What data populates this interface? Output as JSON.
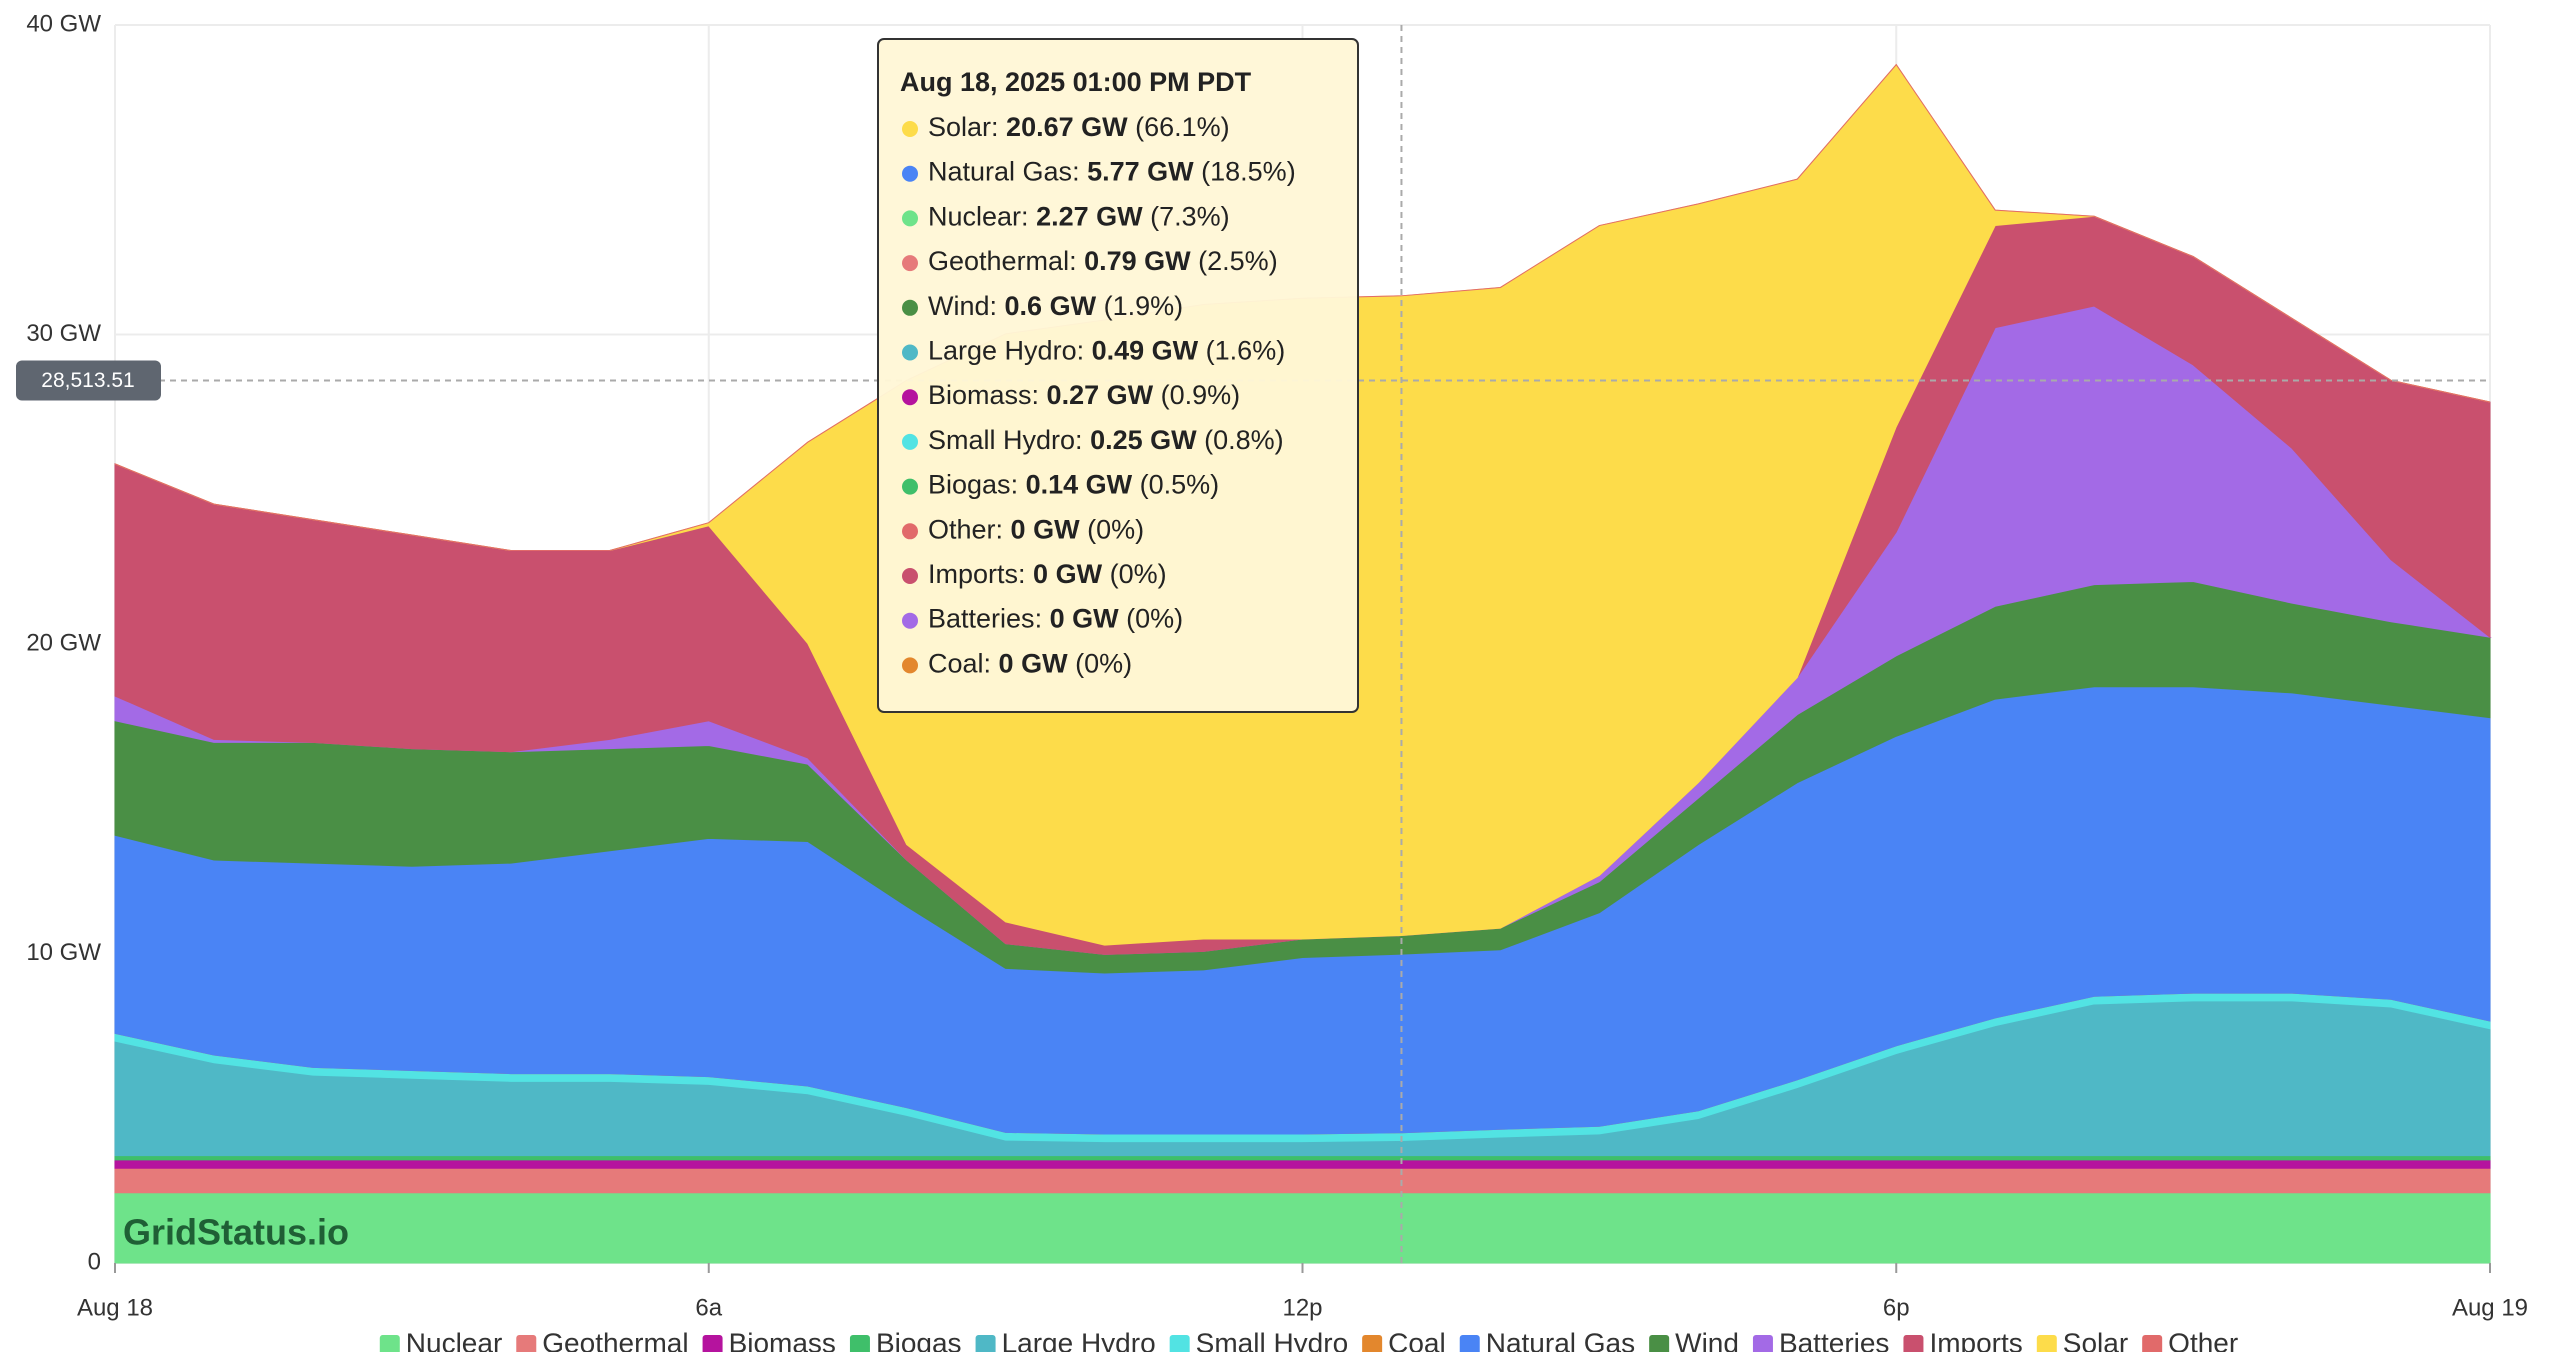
{
  "chart_data": {
    "type": "stacked_area",
    "x": [
      0,
      1,
      2,
      3,
      4,
      5,
      6,
      7,
      8,
      9,
      10,
      11,
      12,
      13,
      14,
      15,
      16,
      17,
      18,
      19,
      20,
      21,
      22,
      23,
      24
    ],
    "xlim": [
      0,
      24
    ],
    "xticks": [
      {
        "value": 0,
        "label": "Aug 18"
      },
      {
        "value": 6,
        "label": "6a"
      },
      {
        "value": 12,
        "label": "12p"
      },
      {
        "value": 18,
        "label": "6p"
      },
      {
        "value": 24,
        "label": "Aug 19"
      }
    ],
    "ylim": [
      0,
      40
    ],
    "yticks": [
      0,
      {
        "value": 10,
        "label": "10 GW"
      },
      {
        "value": 20,
        "label": "20 GW"
      },
      {
        "value": 30,
        "label": "30 GW"
      },
      {
        "value": 40,
        "label": "40 GW"
      }
    ],
    "grid": true,
    "legend": "bottom",
    "watermark": "GridStatus.io",
    "series": [
      {
        "name": "Nuclear",
        "color": "#6ee38a",
        "values": [
          2.27,
          2.27,
          2.27,
          2.27,
          2.27,
          2.27,
          2.27,
          2.27,
          2.27,
          2.27,
          2.27,
          2.27,
          2.27,
          2.27,
          2.27,
          2.27,
          2.27,
          2.27,
          2.27,
          2.27,
          2.27,
          2.27,
          2.27,
          2.27,
          2.27
        ]
      },
      {
        "name": "Geothermal",
        "color": "#e67a7a",
        "values": [
          0.79,
          0.79,
          0.79,
          0.79,
          0.79,
          0.79,
          0.79,
          0.79,
          0.79,
          0.79,
          0.79,
          0.79,
          0.79,
          0.79,
          0.79,
          0.79,
          0.79,
          0.79,
          0.79,
          0.79,
          0.79,
          0.79,
          0.79,
          0.79,
          0.79
        ]
      },
      {
        "name": "Biomass",
        "color": "#b5139e",
        "values": [
          0.27,
          0.27,
          0.27,
          0.27,
          0.27,
          0.27,
          0.27,
          0.27,
          0.27,
          0.27,
          0.27,
          0.27,
          0.27,
          0.27,
          0.27,
          0.27,
          0.27,
          0.27,
          0.27,
          0.27,
          0.27,
          0.27,
          0.27,
          0.27,
          0.27
        ]
      },
      {
        "name": "Biogas",
        "color": "#3fbf6a",
        "values": [
          0.14,
          0.14,
          0.14,
          0.14,
          0.14,
          0.14,
          0.14,
          0.14,
          0.14,
          0.14,
          0.14,
          0.14,
          0.14,
          0.14,
          0.14,
          0.14,
          0.14,
          0.14,
          0.14,
          0.14,
          0.14,
          0.14,
          0.14,
          0.14,
          0.14
        ]
      },
      {
        "name": "Large Hydro",
        "color": "#4fb8c6",
        "values": [
          3.7,
          3.0,
          2.6,
          2.5,
          2.4,
          2.4,
          2.3,
          2.0,
          1.3,
          0.5,
          0.45,
          0.45,
          0.45,
          0.49,
          0.6,
          0.7,
          1.2,
          2.2,
          3.3,
          4.2,
          4.9,
          5.0,
          5.0,
          4.8,
          4.1
        ]
      },
      {
        "name": "Small Hydro",
        "color": "#52e3e3",
        "values": [
          0.25,
          0.25,
          0.25,
          0.25,
          0.25,
          0.25,
          0.25,
          0.25,
          0.25,
          0.25,
          0.25,
          0.25,
          0.25,
          0.25,
          0.25,
          0.25,
          0.25,
          0.25,
          0.25,
          0.25,
          0.25,
          0.25,
          0.25,
          0.25,
          0.25
        ]
      },
      {
        "name": "Coal",
        "color": "#e3872d",
        "values": [
          0,
          0,
          0,
          0,
          0,
          0,
          0,
          0,
          0,
          0,
          0,
          0,
          0,
          0,
          0,
          0,
          0,
          0,
          0,
          0,
          0,
          0,
          0,
          0,
          0
        ]
      },
      {
        "name": "Natural Gas",
        "color": "#4a84f5",
        "values": [
          6.4,
          6.3,
          6.6,
          6.6,
          6.8,
          7.2,
          7.7,
          7.9,
          6.5,
          5.3,
          5.2,
          5.3,
          5.7,
          5.77,
          5.8,
          6.9,
          8.6,
          9.6,
          10.0,
          10.3,
          10.0,
          9.9,
          9.7,
          9.5,
          9.8
        ]
      },
      {
        "name": "Wind",
        "color": "#4a8f45",
        "values": [
          3.7,
          3.8,
          3.9,
          3.8,
          3.6,
          3.3,
          3.0,
          2.5,
          1.5,
          0.8,
          0.6,
          0.6,
          0.6,
          0.6,
          0.7,
          1.0,
          1.5,
          2.2,
          2.6,
          3.0,
          3.3,
          3.4,
          2.9,
          2.7,
          2.6
        ]
      },
      {
        "name": "Batteries",
        "color": "#a36ae6",
        "values": [
          0.8,
          0.1,
          0,
          0,
          0,
          0.3,
          0.8,
          0.2,
          0,
          0,
          0,
          0,
          0,
          0,
          0,
          0.2,
          0.5,
          1.2,
          4,
          9,
          9,
          7,
          5,
          2,
          0
        ]
      },
      {
        "name": "Imports",
        "color": "#c9506e",
        "values": [
          7.5,
          7.6,
          7.2,
          6.9,
          6.5,
          6.1,
          6.3,
          3.7,
          0.5,
          0.7,
          0.3,
          0.4,
          0,
          0,
          0,
          0,
          0,
          0,
          3.4,
          3.3,
          2.9,
          3.5,
          4.2,
          5.8,
          7.6
        ]
      },
      {
        "name": "Solar",
        "color": "#fddc4a",
        "values": [
          0,
          0,
          0,
          0,
          0,
          0,
          0.1,
          6.5,
          15,
          19,
          20.2,
          20.5,
          20.7,
          20.67,
          20.7,
          21,
          18.7,
          16.1,
          11.7,
          0.5,
          0,
          0,
          0,
          0,
          0
        ]
      },
      {
        "name": "Other",
        "color": "#e16a6a",
        "values": [
          0,
          0,
          0,
          0,
          0,
          0,
          0,
          0,
          0,
          0,
          0,
          0,
          0,
          0,
          0,
          0,
          0,
          0,
          0,
          0,
          0,
          0,
          0,
          0,
          0
        ]
      }
    ],
    "crosshair": {
      "x": 13,
      "y": 28.51351,
      "label": "28,513.51"
    },
    "tooltip": {
      "title": "Aug 18, 2025 01:00 PM PDT",
      "items": [
        {
          "name": "Solar",
          "value": "20.67 GW",
          "share": "(66.1%)"
        },
        {
          "name": "Natural Gas",
          "value": "5.77 GW",
          "share": "(18.5%)"
        },
        {
          "name": "Nuclear",
          "value": "2.27 GW",
          "share": "(7.3%)"
        },
        {
          "name": "Geothermal",
          "value": "0.79 GW",
          "share": "(2.5%)"
        },
        {
          "name": "Wind",
          "value": "0.6 GW",
          "share": "(1.9%)"
        },
        {
          "name": "Large Hydro",
          "value": "0.49 GW",
          "share": "(1.6%)"
        },
        {
          "name": "Biomass",
          "value": "0.27 GW",
          "share": "(0.9%)"
        },
        {
          "name": "Small Hydro",
          "value": "0.25 GW",
          "share": "(0.8%)"
        },
        {
          "name": "Biogas",
          "value": "0.14 GW",
          "share": "(0.5%)"
        },
        {
          "name": "Other",
          "value": "0 GW",
          "share": "(0%)"
        },
        {
          "name": "Imports",
          "value": "0 GW",
          "share": "(0%)"
        },
        {
          "name": "Batteries",
          "value": "0 GW",
          "share": "(0%)"
        },
        {
          "name": "Coal",
          "value": "0 GW",
          "share": "(0%)"
        }
      ]
    }
  }
}
